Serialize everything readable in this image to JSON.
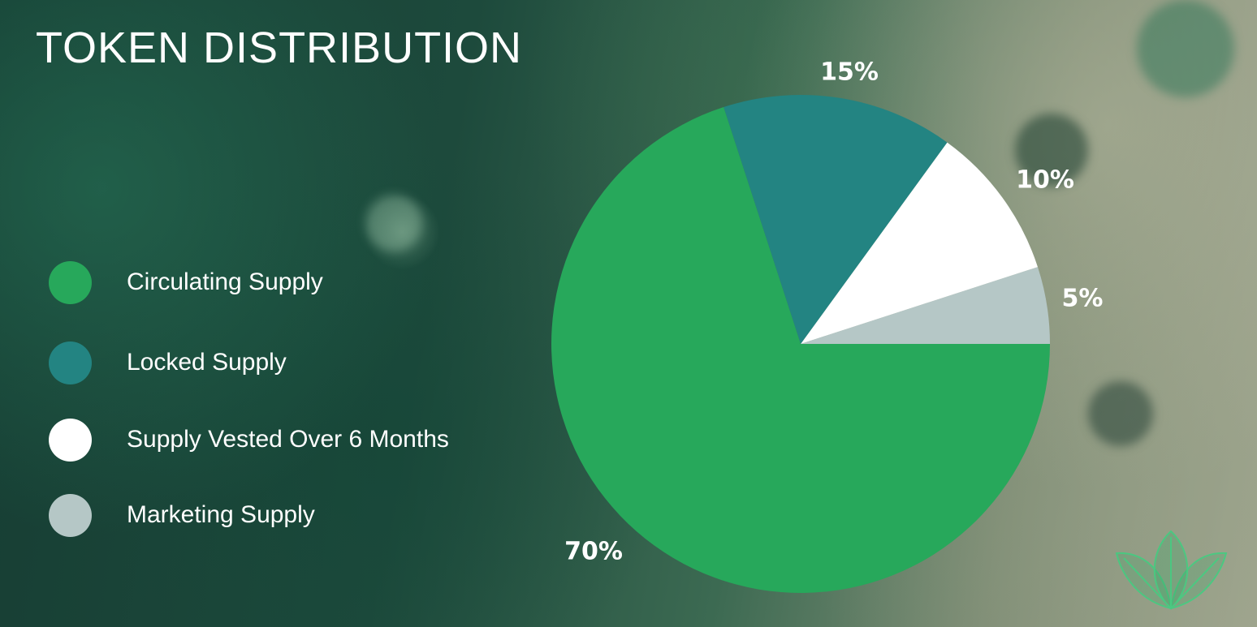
{
  "title": "TOKEN DISTRIBUTION",
  "legend": [
    {
      "label": "Circulating Supply",
      "color": "#27a85b"
    },
    {
      "label": "Locked Supply",
      "color": "#238482"
    },
    {
      "label": "Supply Vested Over 6 Months",
      "color": "#ffffff"
    },
    {
      "label": "Marketing Supply",
      "color": "#b5c7c6"
    }
  ],
  "chart_data": {
    "type": "pie",
    "categories": [
      "Circulating Supply",
      "Locked Supply",
      "Supply Vested Over 6 Months",
      "Marketing Supply"
    ],
    "values": [
      70,
      15,
      10,
      5
    ],
    "labels": [
      "70%",
      "15%",
      "10%",
      "5%"
    ],
    "colors": [
      "#27a85b",
      "#238482",
      "#ffffff",
      "#b5c7c6"
    ],
    "legend_position": "left"
  }
}
